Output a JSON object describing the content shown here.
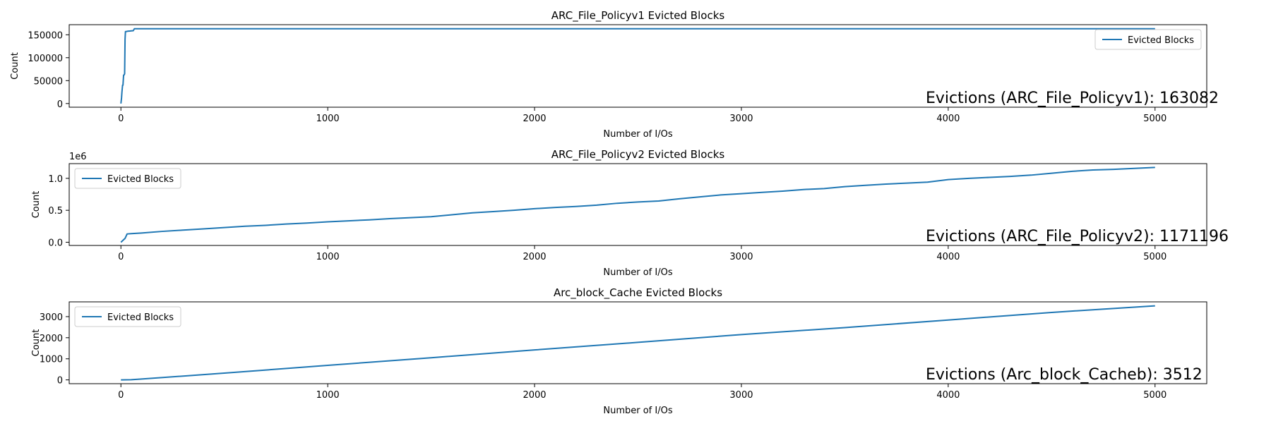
{
  "chart_data": [
    {
      "type": "line",
      "title": "ARC_File_Policyv1 Evicted Blocks",
      "xlabel": "Number of I/Os",
      "ylabel": "Count",
      "xlim": [
        -250,
        5250
      ],
      "ylim": [
        -8000,
        172000
      ],
      "xticks": [
        0,
        1000,
        2000,
        3000,
        4000,
        5000
      ],
      "yticks": [
        0,
        50000,
        100000,
        150000
      ],
      "ytick_labels": [
        "0",
        "50000",
        "100000",
        "150000"
      ],
      "offset_text": "",
      "legend": "top-right",
      "grid": false,
      "color": "#1f77b4",
      "series": [
        {
          "name": "Evicted Blocks",
          "x": [
            0,
            3,
            5,
            8,
            10,
            13,
            15,
            18,
            20,
            22,
            25,
            30,
            35,
            40,
            50,
            60,
            65,
            5000
          ],
          "y": [
            0,
            12000,
            25000,
            40000,
            40000,
            62000,
            62000,
            65000,
            140000,
            157000,
            157000,
            157500,
            158000,
            158000,
            158500,
            159000,
            163082,
            163082
          ]
        }
      ],
      "annotation": "Evictions (ARC_File_Policyv1): 163082"
    },
    {
      "type": "line",
      "title": "ARC_File_Policyv2 Evicted Blocks",
      "xlabel": "Number of I/Os",
      "ylabel": "Count",
      "xlim": [
        -250,
        5250
      ],
      "ylim": [
        -50000,
        1230000
      ],
      "xticks": [
        0,
        1000,
        2000,
        3000,
        4000,
        5000
      ],
      "yticks": [
        0,
        500000,
        1000000
      ],
      "ytick_labels": [
        "0.0",
        "0.5",
        "1.0"
      ],
      "offset_text": "1e6",
      "legend": "top-left",
      "grid": false,
      "color": "#1f77b4",
      "series": [
        {
          "name": "Evicted Blocks",
          "x": [
            0,
            10,
            20,
            30,
            50,
            100,
            200,
            300,
            400,
            500,
            600,
            700,
            800,
            900,
            1000,
            1100,
            1200,
            1300,
            1400,
            1500,
            1600,
            1700,
            1800,
            1900,
            2000,
            2100,
            2200,
            2300,
            2400,
            2500,
            2600,
            2700,
            2800,
            2900,
            3000,
            3100,
            3200,
            3300,
            3400,
            3500,
            3600,
            3700,
            3800,
            3900,
            4000,
            4100,
            4200,
            4300,
            4400,
            4500,
            4600,
            4700,
            4800,
            4900,
            5000
          ],
          "y": [
            0,
            30000,
            60000,
            130000,
            135000,
            145000,
            170000,
            190000,
            210000,
            230000,
            250000,
            265000,
            285000,
            300000,
            320000,
            335000,
            350000,
            370000,
            385000,
            400000,
            430000,
            460000,
            480000,
            500000,
            525000,
            545000,
            560000,
            580000,
            610000,
            630000,
            645000,
            680000,
            710000,
            740000,
            760000,
            780000,
            800000,
            825000,
            840000,
            870000,
            890000,
            910000,
            925000,
            940000,
            980000,
            1000000,
            1015000,
            1030000,
            1050000,
            1080000,
            1110000,
            1130000,
            1140000,
            1155000,
            1171196
          ]
        }
      ],
      "annotation": "Evictions (ARC_File_Policyv2): 1171196"
    },
    {
      "type": "line",
      "title": "Arc_block_Cache Evicted Blocks",
      "xlabel": "Number of I/Os",
      "ylabel": "Count",
      "xlim": [
        -250,
        5250
      ],
      "ylim": [
        -180,
        3700
      ],
      "xticks": [
        0,
        1000,
        2000,
        3000,
        4000,
        5000
      ],
      "yticks": [
        0,
        1000,
        2000,
        3000
      ],
      "ytick_labels": [
        "0",
        "1000",
        "2000",
        "3000"
      ],
      "offset_text": "",
      "legend": "top-left",
      "grid": false,
      "color": "#1f77b4",
      "series": [
        {
          "name": "Evicted Blocks",
          "x": [
            0,
            50,
            100,
            500,
            1000,
            1500,
            2000,
            2500,
            3000,
            3500,
            4000,
            4500,
            5000
          ],
          "y": [
            0,
            10,
            40,
            320,
            690,
            1050,
            1420,
            1780,
            2150,
            2480,
            2840,
            3200,
            3512
          ]
        }
      ],
      "annotation": "Evictions (Arc_block_Cacheb): 3512"
    }
  ]
}
